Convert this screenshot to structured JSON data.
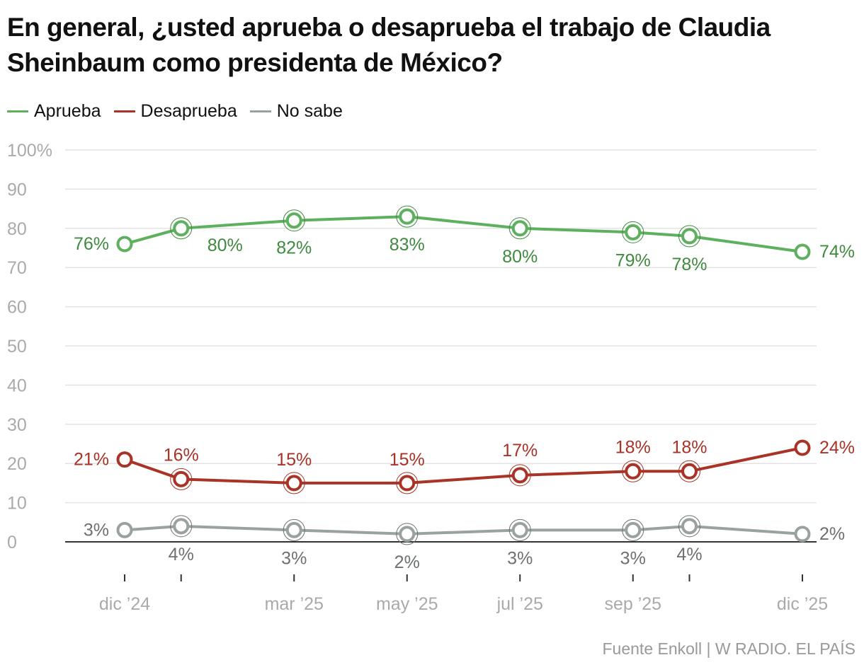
{
  "chart_data": {
    "type": "line",
    "title": "En general, ¿usted aprueba o desaprueba el trabajo de Claudia Sheinbaum como presidenta de México?",
    "x": [
      "2024-12",
      "2025-01",
      "2025-03",
      "2025-05",
      "2025-07",
      "2025-09",
      "2025-10",
      "2025-12"
    ],
    "x_tick_labels": [
      {
        "x": "2024-12",
        "label": "dic ’24"
      },
      {
        "x": "2025-03",
        "label": "mar ’25"
      },
      {
        "x": "2025-05",
        "label": "may ’25"
      },
      {
        "x": "2025-07",
        "label": "jul ’25"
      },
      {
        "x": "2025-09",
        "label": "sep ’25"
      },
      {
        "x": "2025-12",
        "label": "dic ’25"
      }
    ],
    "y_ticks": [
      "0",
      "10",
      "20",
      "30",
      "40",
      "50",
      "60",
      "70",
      "80",
      "90",
      "100%"
    ],
    "ylim": [
      0,
      100
    ],
    "grid": true,
    "legend": "top-left",
    "series": [
      {
        "name": "Aprueba",
        "color": "#5eaf5e",
        "label_color": "#3f8a3f",
        "values": [
          76,
          80,
          82,
          83,
          80,
          79,
          78,
          74
        ]
      },
      {
        "name": "Desaprueba",
        "color": "#a83326",
        "label_color": "#a83326",
        "values": [
          21,
          16,
          15,
          15,
          17,
          18,
          18,
          24
        ]
      },
      {
        "name": "No sabe",
        "color": "#9aa29e",
        "label_color": "#6d716f",
        "values": [
          3,
          4,
          3,
          2,
          3,
          3,
          4,
          2
        ]
      }
    ]
  },
  "source": "Fuente Enkoll | W RADIO. EL PAÍS"
}
